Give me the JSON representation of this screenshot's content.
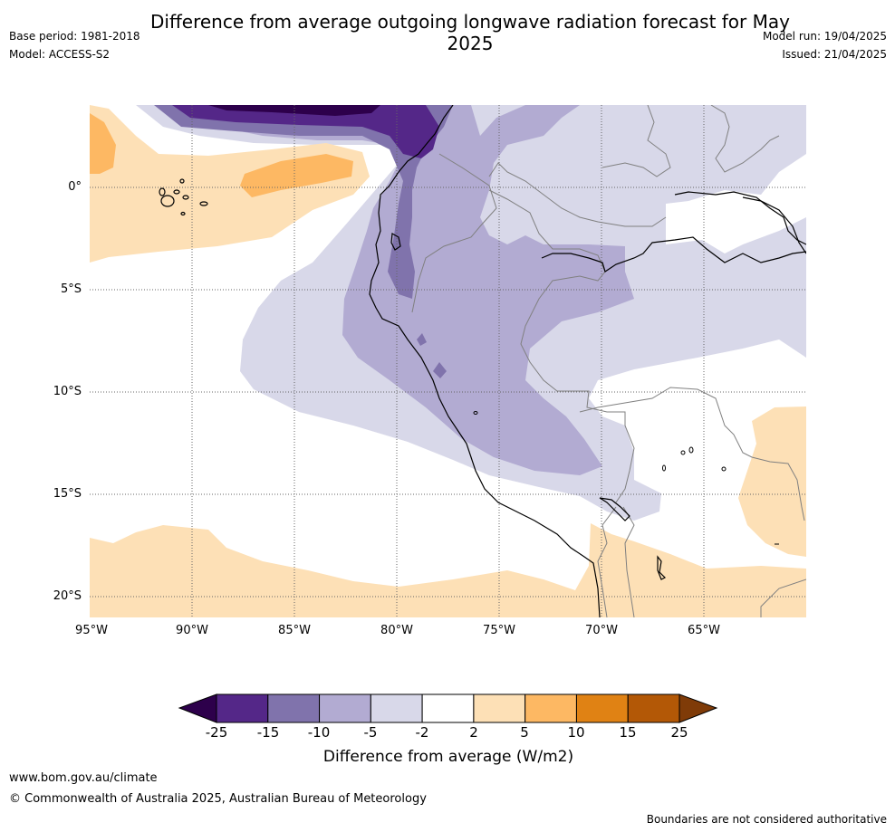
{
  "title": "Difference from average outgoing longwave radiation forecast for May 2025",
  "meta_left": [
    "Base period: 1981-2018",
    "Model: ACCESS-S2"
  ],
  "meta_right": [
    "Model run: 19/04/2025",
    "Issued: 21/04/2025"
  ],
  "map": {
    "lat_labels": [
      "0°",
      "5°S",
      "10°S",
      "15°S",
      "20°S"
    ],
    "lon_labels": [
      "95°W",
      "90°W",
      "85°W",
      "80°W",
      "75°W",
      "70°W",
      "65°W"
    ],
    "lon_range": [
      -95,
      -60
    ],
    "lat_range": [
      -21,
      4
    ],
    "colors": {
      "pos_2_5": "#fde0b6",
      "pos_5_10": "#fdb863",
      "neg_2_5": "#d8d8e9",
      "neg_5_10": "#b2abd2",
      "neg_10_15": "#8073ac",
      "neg_15_25": "#542788",
      "neg_lt_25": "#2d004b",
      "coast": "#000000",
      "border": "#808080",
      "grid": "#666666"
    }
  },
  "colorbar": {
    "labels": [
      "-25",
      "-15",
      "-10",
      "-5",
      "-2",
      "2",
      "5",
      "10",
      "15",
      "25"
    ],
    "colors": [
      "#542788",
      "#8073ac",
      "#b2abd2",
      "#d8d8e9",
      "#ffffff",
      "#fde0b6",
      "#fdb863",
      "#e08214",
      "#b35806"
    ],
    "low_extend_color": "#2d004b",
    "high_extend_color": "#7f3b08",
    "title": "Difference from average (W/m2)"
  },
  "footer": {
    "url": "www.bom.gov.au/climate",
    "copyright": "© Commonwealth of Australia 2025, Australian Bureau of Meteorology",
    "note": "Boundaries are not considered authoritative"
  }
}
